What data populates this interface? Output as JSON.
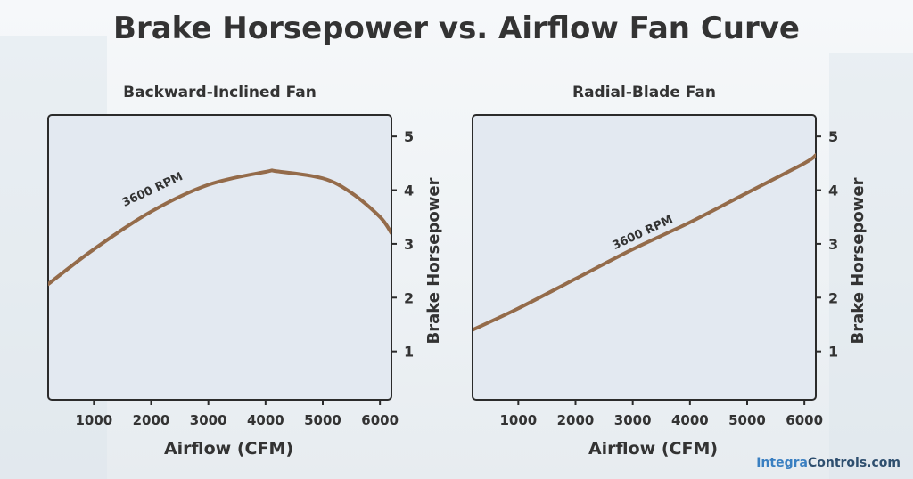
{
  "title": "Brake Horsepower vs. Airflow Fan Curve",
  "footer": {
    "brand_part1": "Integra",
    "brand_part2": "Controls.com"
  },
  "colors": {
    "curve": "#946b4a",
    "plot_bg": "#e3e9f1",
    "frame": "#2b2b2b",
    "text": "#333333"
  },
  "chart_data": [
    {
      "type": "line",
      "title": "Backward-Inclined Fan",
      "xlabel": "Airflow (CFM)",
      "ylabel": "Brake Horsepower",
      "xlim": [
        200,
        6200
      ],
      "ylim": [
        0.1,
        5.4
      ],
      "xticks": [
        1000,
        2000,
        3000,
        4000,
        5000,
        6000
      ],
      "yticks": [
        1,
        2,
        3,
        4,
        5
      ],
      "y_axis_side": "right",
      "grid": false,
      "series": [
        {
          "name": "3600 RPM",
          "x": [
            200,
            1000,
            2000,
            3000,
            4000,
            4200,
            5000,
            5500,
            6000,
            6200
          ],
          "y": [
            2.25,
            2.9,
            3.6,
            4.1,
            4.34,
            4.35,
            4.22,
            3.95,
            3.5,
            3.2
          ]
        }
      ],
      "annotation": {
        "text": "3600 RPM",
        "x": 2050,
        "y": 3.95
      }
    },
    {
      "type": "line",
      "title": "Radial-Blade Fan",
      "xlabel": "Airflow (CFM)",
      "ylabel": "Brake Horsepower",
      "xlim": [
        200,
        6200
      ],
      "ylim": [
        0.1,
        5.4
      ],
      "xticks": [
        1000,
        2000,
        3000,
        4000,
        5000,
        6000
      ],
      "yticks": [
        1,
        2,
        3,
        4,
        5
      ],
      "y_axis_side": "right",
      "grid": false,
      "series": [
        {
          "name": "3600 RPM",
          "x": [
            200,
            1000,
            2000,
            3000,
            4000,
            5000,
            6000,
            6200
          ],
          "y": [
            1.4,
            1.8,
            2.35,
            2.9,
            3.4,
            3.95,
            4.5,
            4.65
          ]
        }
      ],
      "annotation": {
        "text": "3600 RPM",
        "x": 3200,
        "y": 3.15
      }
    }
  ]
}
